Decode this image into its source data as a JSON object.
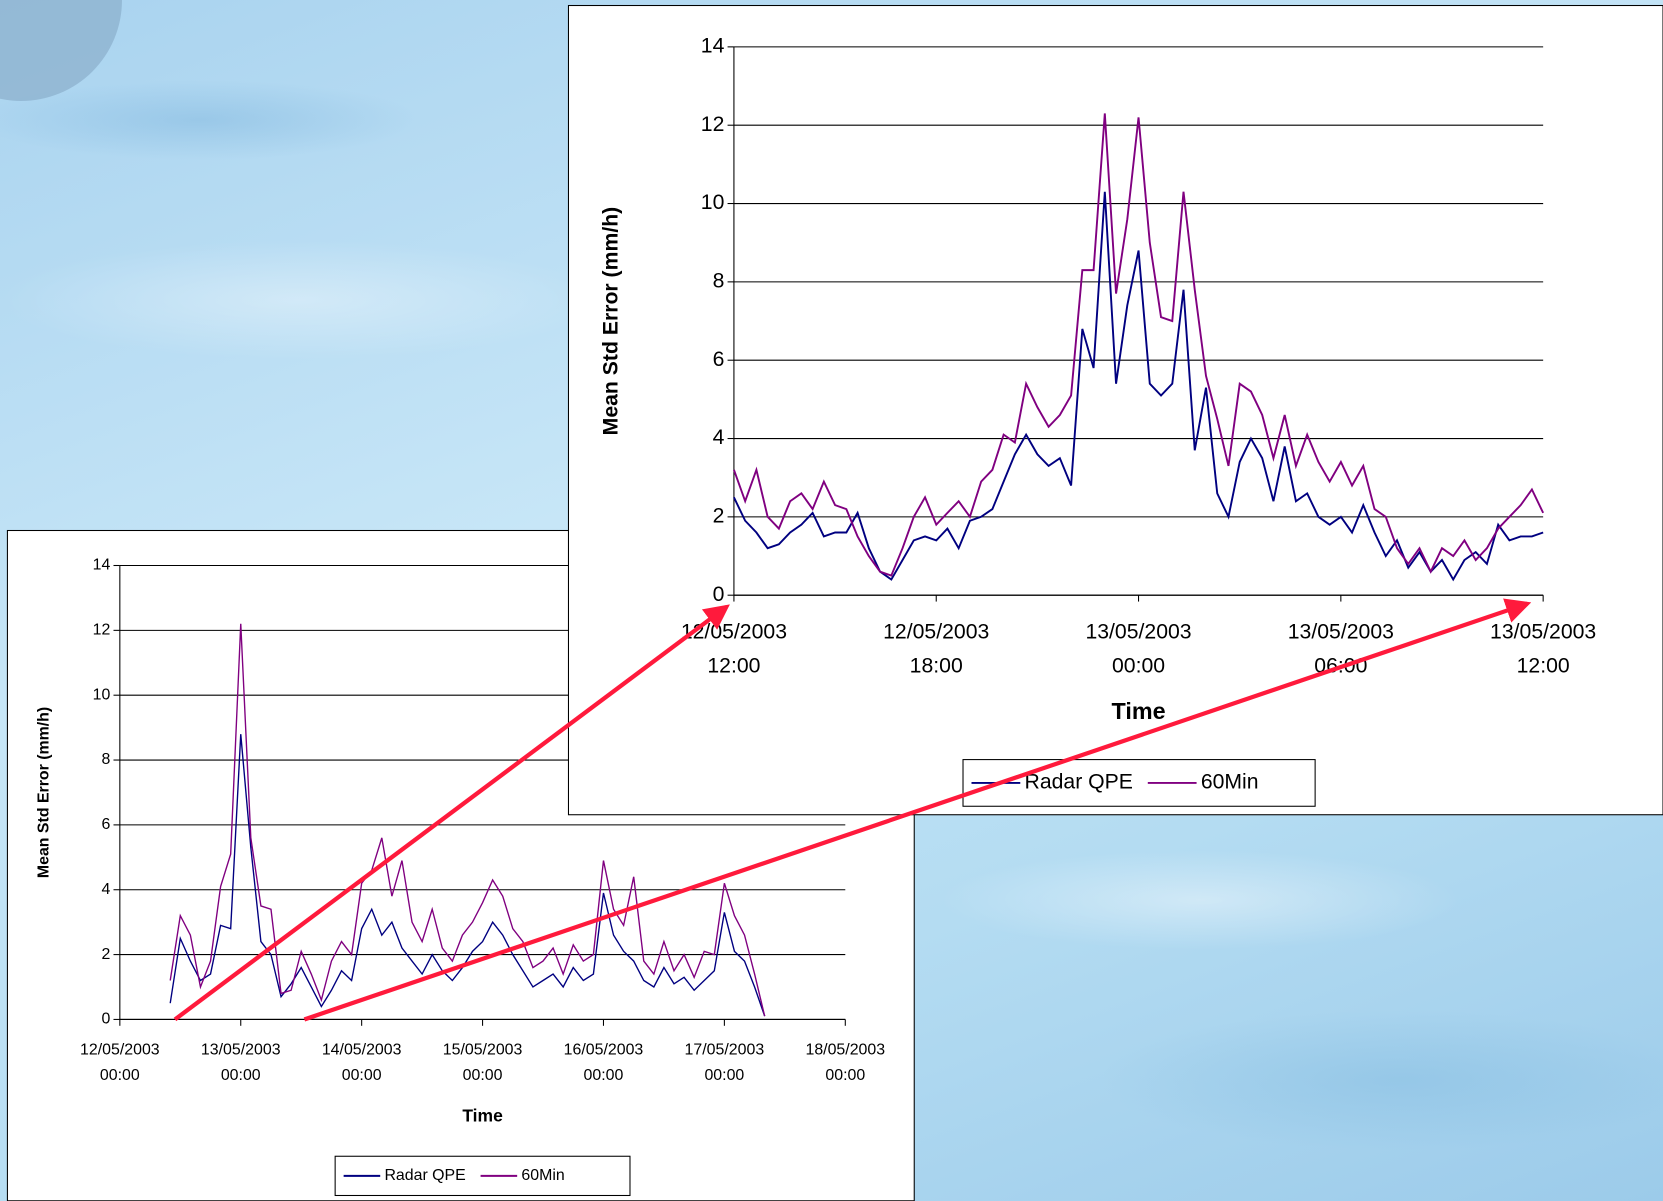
{
  "chart_data": [
    {
      "type": "line",
      "y_label": "Mean Std Error (mm/h)",
      "x_label": "Time",
      "grid": true,
      "ylim": [
        0,
        14
      ],
      "yticks": [
        0,
        2,
        4,
        6,
        8,
        10,
        12,
        14
      ],
      "xlim": [
        "12/05/2003 00:00",
        "18/05/2003 00:00"
      ],
      "xticks": [
        "12/05/2003 00:00",
        "13/05/2003 00:00",
        "14/05/2003 00:00",
        "15/05/2003 00:00",
        "16/05/2003 00:00",
        "17/05/2003 00:00",
        "18/05/2003 00:00"
      ],
      "x": [
        "12/05/2003 10:00",
        "12/05/2003 12:00",
        "12/05/2003 14:00",
        "12/05/2003 16:00",
        "12/05/2003 18:00",
        "12/05/2003 20:00",
        "12/05/2003 22:00",
        "13/05/2003 00:00",
        "13/05/2003 02:00",
        "13/05/2003 04:00",
        "13/05/2003 06:00",
        "13/05/2003 08:00",
        "13/05/2003 10:00",
        "13/05/2003 12:00",
        "13/05/2003 14:00",
        "13/05/2003 16:00",
        "13/05/2003 18:00",
        "13/05/2003 20:00",
        "13/05/2003 22:00",
        "14/05/2003 00:00",
        "14/05/2003 02:00",
        "14/05/2003 04:00",
        "14/05/2003 06:00",
        "14/05/2003 08:00",
        "14/05/2003 10:00",
        "14/05/2003 12:00",
        "14/05/2003 14:00",
        "14/05/2003 16:00",
        "14/05/2003 18:00",
        "14/05/2003 20:00",
        "14/05/2003 22:00",
        "15/05/2003 00:00",
        "15/05/2003 02:00",
        "15/05/2003 04:00",
        "15/05/2003 06:00",
        "15/05/2003 08:00",
        "15/05/2003 10:00",
        "15/05/2003 12:00",
        "15/05/2003 14:00",
        "15/05/2003 16:00",
        "15/05/2003 18:00",
        "15/05/2003 20:00",
        "15/05/2003 22:00",
        "16/05/2003 00:00",
        "16/05/2003 02:00",
        "16/05/2003 04:00",
        "16/05/2003 06:00",
        "16/05/2003 08:00",
        "16/05/2003 10:00",
        "16/05/2003 12:00",
        "16/05/2003 14:00",
        "16/05/2003 16:00",
        "16/05/2003 18:00",
        "16/05/2003 20:00",
        "16/05/2003 22:00",
        "17/05/2003 00:00",
        "17/05/2003 02:00",
        "17/05/2003 04:00",
        "17/05/2003 06:00",
        "17/05/2003 08:00"
      ],
      "series": [
        {
          "name": "Radar QPE",
          "color": "#000080",
          "values": [
            0.5,
            2.5,
            1.8,
            1.2,
            1.4,
            2.9,
            2.8,
            8.8,
            5.3,
            2.4,
            2.0,
            0.7,
            1.1,
            1.6,
            1.0,
            0.4,
            0.9,
            1.5,
            1.2,
            2.8,
            3.4,
            2.6,
            3.0,
            2.2,
            1.8,
            1.4,
            2.0,
            1.5,
            1.2,
            1.6,
            2.1,
            2.4,
            3.0,
            2.6,
            2.0,
            1.5,
            1.0,
            1.2,
            1.4,
            1.0,
            1.6,
            1.2,
            1.4,
            3.9,
            2.6,
            2.1,
            1.8,
            1.2,
            1.0,
            1.6,
            1.1,
            1.3,
            0.9,
            1.2,
            1.5,
            3.3,
            2.1,
            1.8,
            1.0,
            0.1
          ]
        },
        {
          "name": "60Min",
          "color": "#800080",
          "values": [
            1.2,
            3.2,
            2.6,
            1.0,
            1.8,
            4.1,
            5.1,
            12.2,
            5.6,
            3.5,
            3.4,
            0.8,
            0.9,
            2.1,
            1.4,
            0.6,
            1.8,
            2.4,
            2.0,
            4.2,
            4.6,
            5.6,
            3.8,
            4.9,
            3.0,
            2.4,
            3.4,
            2.2,
            1.8,
            2.6,
            3.0,
            3.6,
            4.3,
            3.8,
            2.8,
            2.4,
            1.6,
            1.8,
            2.2,
            1.4,
            2.3,
            1.8,
            2.0,
            4.9,
            3.4,
            2.9,
            4.4,
            1.8,
            1.4,
            2.4,
            1.5,
            2.0,
            1.3,
            2.1,
            2.0,
            4.2,
            3.2,
            2.6,
            1.4,
            0.1
          ]
        }
      ]
    },
    {
      "type": "line",
      "y_label": "Mean Std Error (mm/h)",
      "x_label": "Time",
      "grid": true,
      "ylim": [
        0,
        14
      ],
      "yticks": [
        0,
        2,
        4,
        6,
        8,
        10,
        12,
        14
      ],
      "xlim": [
        "12/05/2003 12:00",
        "13/05/2003 12:00"
      ],
      "xticks": [
        "12/05/2003 12:00",
        "12/05/2003 18:00",
        "13/05/2003 00:00",
        "13/05/2003 06:00",
        "13/05/2003 12:00"
      ],
      "x": [
        "12/05/2003 12:00",
        "12/05/2003 12:20",
        "12/05/2003 12:40",
        "12/05/2003 13:00",
        "12/05/2003 13:20",
        "12/05/2003 13:40",
        "12/05/2003 14:00",
        "12/05/2003 14:20",
        "12/05/2003 14:40",
        "12/05/2003 15:00",
        "12/05/2003 15:20",
        "12/05/2003 15:40",
        "12/05/2003 16:00",
        "12/05/2003 16:20",
        "12/05/2003 16:40",
        "12/05/2003 17:00",
        "12/05/2003 17:20",
        "12/05/2003 17:40",
        "12/05/2003 18:00",
        "12/05/2003 18:20",
        "12/05/2003 18:40",
        "12/05/2003 19:00",
        "12/05/2003 19:20",
        "12/05/2003 19:40",
        "12/05/2003 20:00",
        "12/05/2003 20:20",
        "12/05/2003 20:40",
        "12/05/2003 21:00",
        "12/05/2003 21:20",
        "12/05/2003 21:40",
        "12/05/2003 22:00",
        "12/05/2003 22:20",
        "12/05/2003 22:40",
        "12/05/2003 23:00",
        "12/05/2003 23:20",
        "12/05/2003 23:40",
        "13/05/2003 00:00",
        "13/05/2003 00:20",
        "13/05/2003 00:40",
        "13/05/2003 01:00",
        "13/05/2003 01:20",
        "13/05/2003 01:40",
        "13/05/2003 02:00",
        "13/05/2003 02:20",
        "13/05/2003 02:40",
        "13/05/2003 03:00",
        "13/05/2003 03:20",
        "13/05/2003 03:40",
        "13/05/2003 04:00",
        "13/05/2003 04:20",
        "13/05/2003 04:40",
        "13/05/2003 05:00",
        "13/05/2003 05:20",
        "13/05/2003 05:40",
        "13/05/2003 06:00",
        "13/05/2003 06:20",
        "13/05/2003 06:40",
        "13/05/2003 07:00",
        "13/05/2003 07:20",
        "13/05/2003 07:40",
        "13/05/2003 08:00",
        "13/05/2003 08:20",
        "13/05/2003 08:40",
        "13/05/2003 09:00",
        "13/05/2003 09:20",
        "13/05/2003 09:40",
        "13/05/2003 10:00",
        "13/05/2003 10:20",
        "13/05/2003 10:40",
        "13/05/2003 11:00",
        "13/05/2003 11:20",
        "13/05/2003 11:40",
        "13/05/2003 12:00"
      ],
      "series": [
        {
          "name": "Radar QPE",
          "color": "#000080",
          "values": [
            2.5,
            1.9,
            1.6,
            1.2,
            1.3,
            1.6,
            1.8,
            2.1,
            1.5,
            1.6,
            1.6,
            2.1,
            1.2,
            0.6,
            0.4,
            0.9,
            1.4,
            1.5,
            1.4,
            1.7,
            1.2,
            1.9,
            2.0,
            2.2,
            2.9,
            3.6,
            4.1,
            3.6,
            3.3,
            3.5,
            2.8,
            6.8,
            5.8,
            10.3,
            5.4,
            7.4,
            8.8,
            5.4,
            5.1,
            5.4,
            7.8,
            3.7,
            5.3,
            2.6,
            2.0,
            3.4,
            4.0,
            3.5,
            2.4,
            3.8,
            2.4,
            2.6,
            2.0,
            1.8,
            2.0,
            1.6,
            2.3,
            1.6,
            1.0,
            1.4,
            0.7,
            1.1,
            0.6,
            0.9,
            0.4,
            0.9,
            1.1,
            0.8,
            1.8,
            1.4,
            1.5,
            1.5,
            1.6
          ]
        },
        {
          "name": "60Min",
          "color": "#800080",
          "values": [
            3.2,
            2.4,
            3.2,
            2.0,
            1.7,
            2.4,
            2.6,
            2.2,
            2.9,
            2.3,
            2.2,
            1.5,
            1.0,
            0.6,
            0.5,
            1.2,
            2.0,
            2.5,
            1.8,
            2.1,
            2.4,
            2.0,
            2.9,
            3.2,
            4.1,
            3.9,
            5.4,
            4.8,
            4.3,
            4.6,
            5.1,
            8.3,
            8.3,
            12.3,
            7.7,
            9.6,
            12.2,
            9.0,
            7.1,
            7.0,
            10.3,
            7.8,
            5.6,
            4.5,
            3.3,
            5.4,
            5.2,
            4.6,
            3.5,
            4.6,
            3.3,
            4.1,
            3.4,
            2.9,
            3.4,
            2.8,
            3.3,
            2.2,
            2.0,
            1.2,
            0.8,
            1.2,
            0.6,
            1.2,
            1.0,
            1.4,
            0.9,
            1.2,
            1.7,
            2.0,
            2.3,
            2.7,
            2.1
          ]
        }
      ]
    }
  ]
}
